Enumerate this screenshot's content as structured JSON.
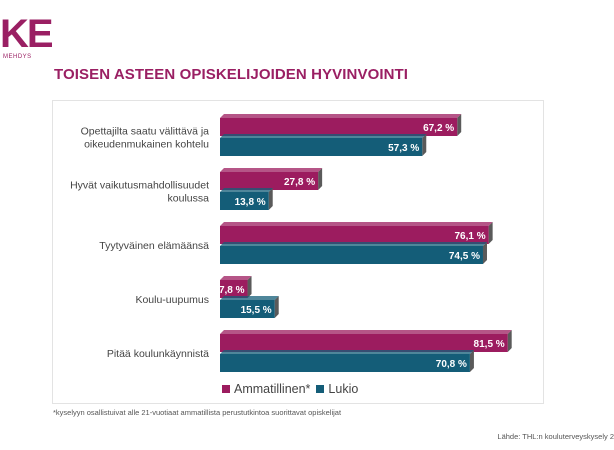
{
  "logo": {
    "text": "KE",
    "subtitle": "MEHDYS"
  },
  "page_title": "TOISEN ASTEEN OPISKELIJOIDEN HYVINVOINTI",
  "colors": {
    "accent": "#9a1f63",
    "series1": "#9c1c5f",
    "series2": "#145d78",
    "bar_shadow": "#5a5a5a"
  },
  "chart_data": {
    "type": "bar",
    "orientation": "horizontal",
    "categories": [
      [
        "Opettajilta saatu välittävä ja",
        "oikeudenmukainen kohtelu"
      ],
      [
        "Hyvät vaikutusmahdollisuudet",
        "koulussa"
      ],
      [
        "Tyytyväinen elämäänsä"
      ],
      [
        "Koulu-uupumus"
      ],
      [
        "Pitää koulunkäynnistä"
      ]
    ],
    "series": [
      {
        "name": "Ammatillinen",
        "values": [
          67.2,
          27.8,
          76.1,
          7.8,
          81.5
        ],
        "labels": [
          "67,2 %",
          "27,8 %",
          "76,1 %",
          "7,8 %",
          "81,5 %"
        ],
        "color": "#9c1c5f"
      },
      {
        "name": "Lukio",
        "values": [
          57.3,
          13.8,
          74.5,
          15.5,
          70.8
        ],
        "labels": [
          "57,3 %",
          "13,8 %",
          "74,5 %",
          "15,5 %",
          "70,8 %"
        ],
        "color": "#145d78"
      }
    ],
    "xlim": [
      0,
      100
    ],
    "grid": false,
    "legend_position": "bottom",
    "legend_labels": [
      "Ammatillinen*",
      "Lukio"
    ]
  },
  "footnote": "*kyselyyn osallistuivat alle 21-vuotiaat ammatillista perustutkintoa suorittavat opiskelijat",
  "source": "Lähde: THL:n kouluterveyskysely 2"
}
